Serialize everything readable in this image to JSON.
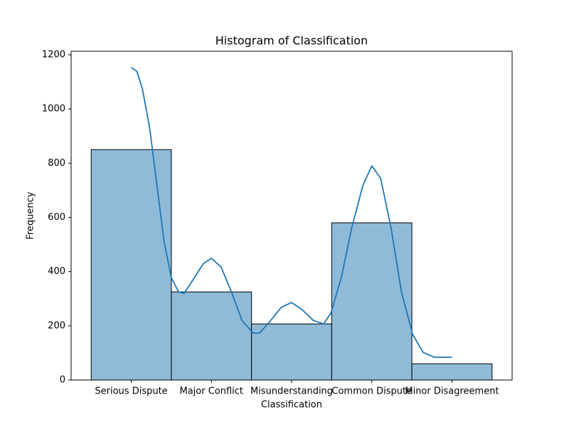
{
  "chart_data": {
    "type": "bar",
    "title": "Histogram of Classification",
    "xlabel": "Classification",
    "ylabel": "Frequency",
    "categories": [
      "Serious Dispute",
      "Major Conflict",
      "Misunderstanding",
      "Common Dispute",
      "Minor Disagreement"
    ],
    "values": [
      850,
      325,
      207,
      580,
      60
    ],
    "color": "#8fbbd9",
    "xlim": [
      -0.75,
      4.75
    ],
    "ylim": [
      0,
      1213
    ],
    "yticks": [
      0,
      200,
      400,
      600,
      800,
      1000,
      1200
    ],
    "kde": {
      "color": "#1f77b4",
      "x": [
        0,
        0.07,
        0.14,
        0.23,
        0.32,
        0.41,
        0.5,
        0.59,
        0.66,
        0.76,
        0.9,
        1.0,
        1.12,
        1.25,
        1.38,
        1.52,
        1.6,
        1.74,
        1.87,
        2.0,
        2.13,
        2.27,
        2.4,
        2.49,
        2.62,
        2.75,
        2.89,
        3.0,
        3.11,
        3.24,
        3.37,
        3.51,
        3.64,
        3.78,
        4.0
      ],
      "values": [
        1153,
        1139,
        1073,
        929,
        719,
        509,
        378,
        325,
        320,
        365,
        430,
        449,
        417,
        325,
        220,
        173,
        173,
        220,
        268,
        286,
        260,
        220,
        207,
        247,
        378,
        562,
        719,
        790,
        745,
        562,
        325,
        168,
        102,
        84,
        84
      ]
    }
  }
}
